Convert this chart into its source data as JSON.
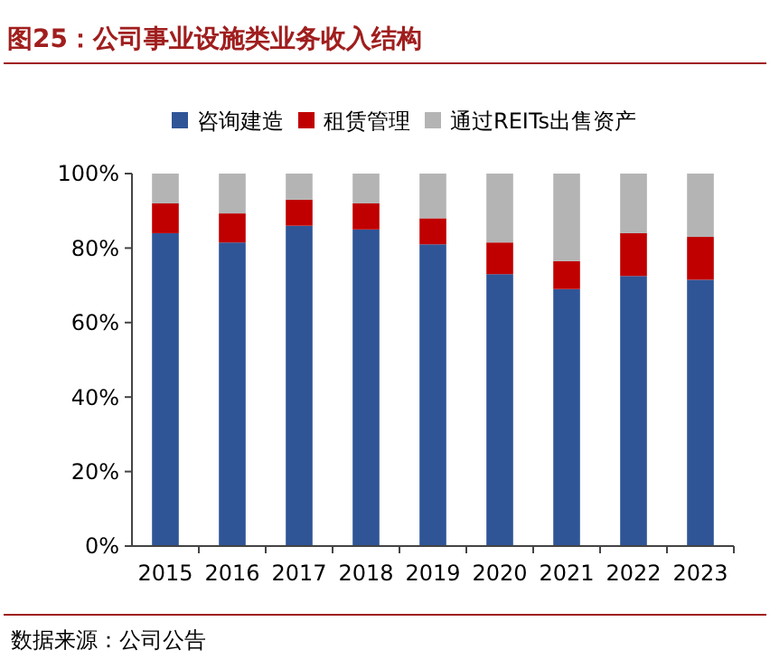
{
  "chart_data": {
    "type": "bar",
    "stacked": true,
    "title": "图25：公司事业设施类业务收入结构",
    "annotations": [
      "数据来源：公司公告"
    ],
    "categories": [
      "2015",
      "2016",
      "2017",
      "2018",
      "2019",
      "2020",
      "2021",
      "2022",
      "2023"
    ],
    "series": [
      {
        "name": "咨询建造",
        "color": "#2f5597",
        "values": [
          84,
          81.5,
          86,
          85,
          81,
          73,
          69,
          72.5,
          71.5
        ]
      },
      {
        "name": "租赁管理",
        "color": "#c00000",
        "values": [
          8,
          7.8,
          7,
          7,
          7,
          8.5,
          7.5,
          11.5,
          11.5
        ]
      },
      {
        "name": "通过REITs出售资产",
        "color": "#b4b4b4",
        "values": [
          8,
          10.7,
          7,
          8,
          12,
          18.5,
          23.5,
          16,
          17
        ]
      }
    ],
    "ylim": [
      0,
      100
    ],
    "yticks": [
      {
        "value": 0,
        "label": "0%"
      },
      {
        "value": 20,
        "label": "20%"
      },
      {
        "value": 40,
        "label": "40%"
      },
      {
        "value": 60,
        "label": "60%"
      },
      {
        "value": 80,
        "label": "80%"
      },
      {
        "value": 100,
        "label": "100%"
      }
    ],
    "grid": false,
    "legend": "top"
  }
}
